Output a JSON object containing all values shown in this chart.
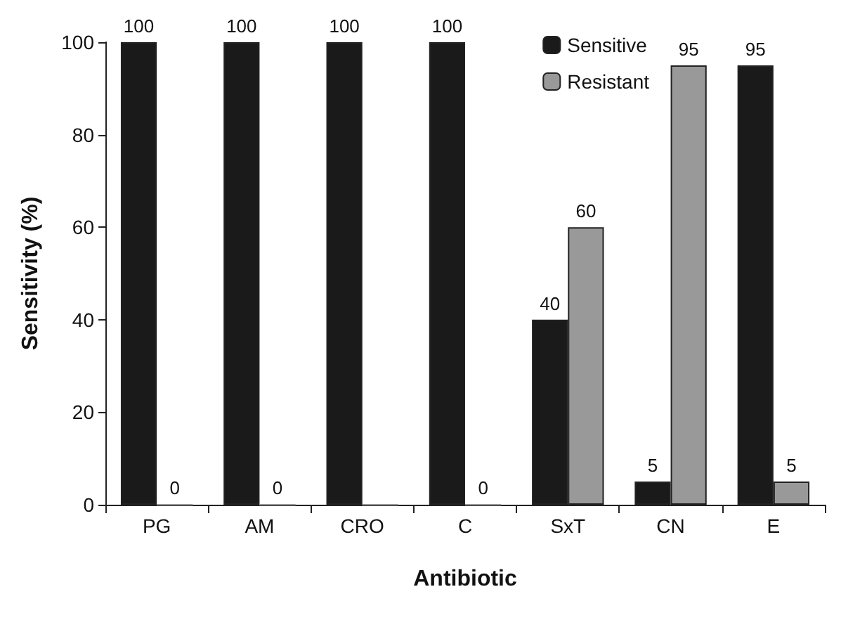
{
  "chart_data": {
    "type": "bar",
    "xlabel": "Antibiotic",
    "ylabel": "Sensitivity (%)",
    "categories": [
      "PG",
      "AM",
      "CRO",
      "C",
      "SxT",
      "CN",
      "E"
    ],
    "series": [
      {
        "name": "Sensitive",
        "color": "#1a1a1a",
        "values": [
          100,
          100,
          100,
          100,
          40,
          5,
          95
        ],
        "value_labels": [
          "100",
          "100",
          "100",
          "100",
          "40",
          "5",
          "95"
        ]
      },
      {
        "name": "Resistant",
        "color": "#999999",
        "values": [
          0,
          0,
          0,
          0,
          60,
          95,
          5
        ],
        "value_labels": [
          "0",
          "0",
          null,
          "0",
          "60",
          "95",
          "5"
        ]
      }
    ],
    "ylim": [
      0,
      100
    ],
    "yticks": [
      0,
      20,
      40,
      60,
      80,
      100
    ],
    "grid": false,
    "legend": "top right"
  }
}
